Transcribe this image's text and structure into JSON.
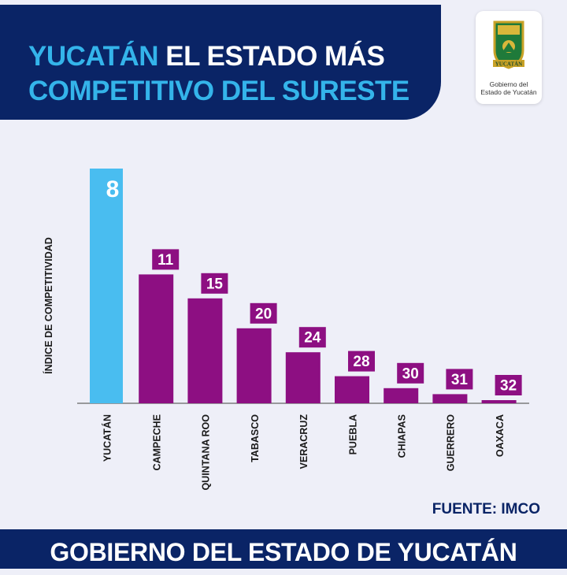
{
  "header": {
    "title_part1": "YUCATÁN",
    "title_part2": " EL ESTADO MÁS",
    "title_line2": "COMPETITIVO DEL SURESTE"
  },
  "logo": {
    "emblem_text": "YUCATÁN",
    "caption_line1": "Gobierno del",
    "caption_line2": "Estado de Yucatán"
  },
  "chart_data": {
    "type": "bar",
    "ylabel": "ÍNDICE DE COMPETITIVIDAD",
    "categories": [
      "YUCATÁN",
      "CAMPECHE",
      "QUINTANA ROO",
      "TABASCO",
      "VERACRUZ",
      "PUEBLA",
      "CHIAPAS",
      "GUERRERO",
      "OAXACA"
    ],
    "values": [
      8,
      11,
      15,
      20,
      24,
      28,
      30,
      31,
      32
    ],
    "highlight": "YUCATÁN",
    "colors": {
      "highlight": "#49bdf0",
      "default": "#8d0f82"
    },
    "grid": false
  },
  "source": "FUENTE: IMCO",
  "footer": "GOBIERNO DEL ESTADO DE YUCATÁN"
}
